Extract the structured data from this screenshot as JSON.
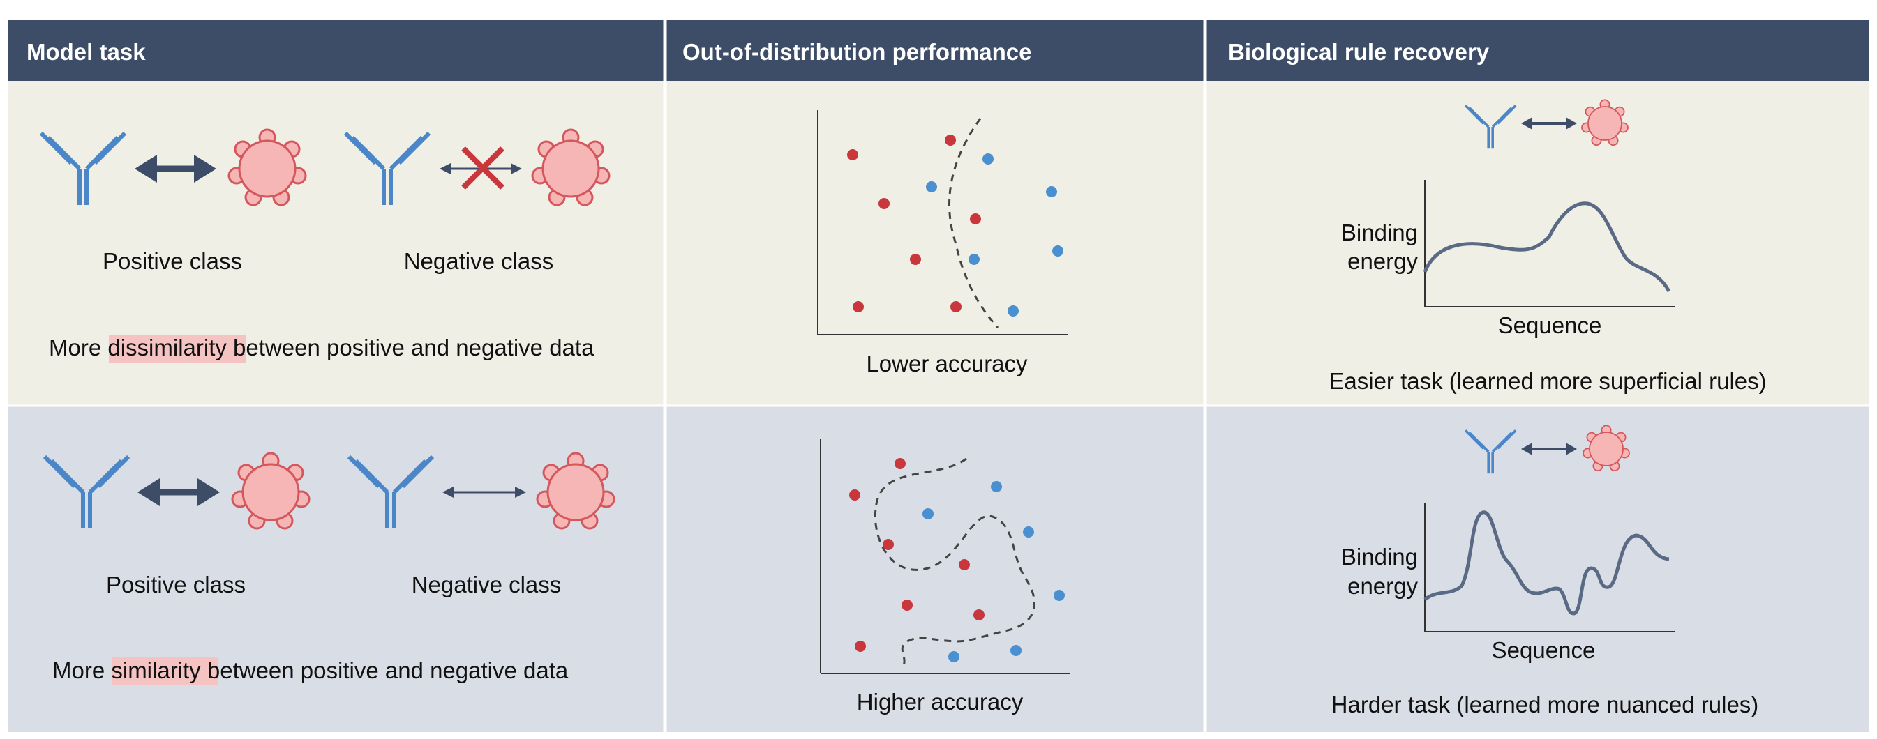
{
  "headers": {
    "model_task": "Model task",
    "ood_performance": "Out-of-distribution performance",
    "rule_recovery": "Biological rule recovery"
  },
  "rows": [
    {
      "positive_label": "Positive class",
      "negative_label": "Negative class",
      "caption_before": "More",
      "caption_highlight": "dissimilarity",
      "caption_after": "between positive and negative data",
      "accuracy_label": "Lower accuracy",
      "y_axis_label_line1": "Binding",
      "y_axis_label_line2": "energy",
      "x_axis_label": "Sequence",
      "task_label": "Easier task (learned more superficial rules)"
    },
    {
      "positive_label": "Positive class",
      "negative_label": "Negative class",
      "caption_before": "More",
      "caption_highlight": "similarity",
      "caption_after": "between positive and negative data",
      "accuracy_label": "Higher accuracy",
      "y_axis_label_line1": "Binding",
      "y_axis_label_line2": "energy",
      "x_axis_label": "Sequence",
      "task_label": "Harder task (learned more nuanced rules)"
    }
  ],
  "colors": {
    "header_bg": "#3d4d68",
    "row1_bg": "#f0efe6",
    "row2_bg": "#d9dde6",
    "antibody": "#4a86c8",
    "antigen_fill": "#f6b6b6",
    "antigen_stroke": "#d4575c",
    "arrow": "#3d4d68",
    "cross": "#c9363c",
    "highlight": "#f6c3c3",
    "dot_red": "#c9363c",
    "dot_blue": "#4a8fd0",
    "curve": "#5a6a85"
  }
}
